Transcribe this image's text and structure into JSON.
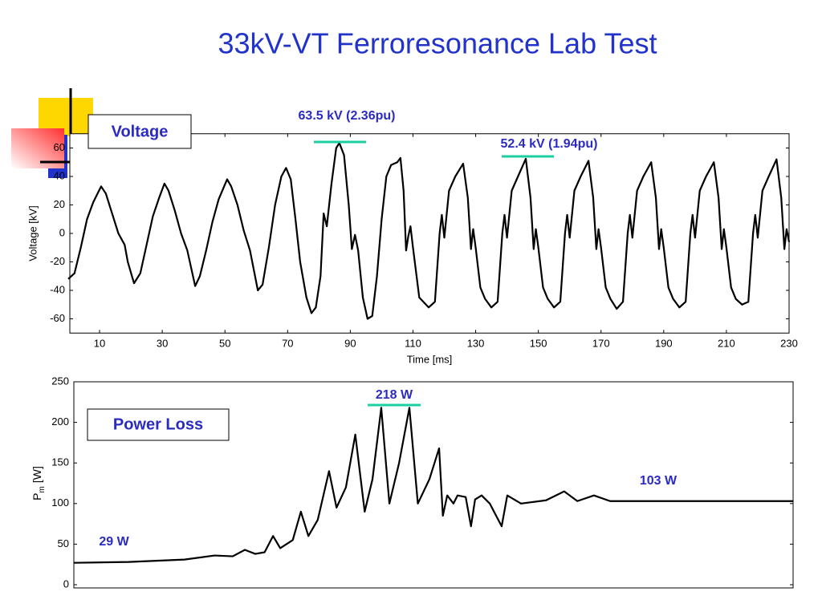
{
  "slide_title": "33kV-VT Ferroresonance Lab Test",
  "chart_data": [
    {
      "type": "line",
      "label": "Voltage",
      "y_label": "Voltage [kV]",
      "x_label": "Time [ms]",
      "annotations": [
        "63.5 kV (2.36pu)",
        "52.4 kV (1.94pu)"
      ],
      "xlim": [
        0,
        230
      ],
      "xticks": [
        10,
        30,
        50,
        70,
        90,
        110,
        130,
        150,
        170,
        190,
        210,
        230
      ],
      "ylim": [
        -70,
        70
      ],
      "yticks": [
        -60,
        -40,
        -20,
        0,
        20,
        40,
        60
      ],
      "series": [
        {
          "color": "#000000",
          "x": [
            0,
            2,
            4,
            6,
            8,
            10.5,
            12,
            14,
            16,
            18,
            19,
            21,
            23,
            25,
            27,
            29,
            30.7,
            32,
            34,
            36,
            38,
            40.5,
            42,
            44,
            46,
            48,
            50.7,
            52,
            54,
            56,
            58,
            60.5,
            62,
            64,
            66,
            68,
            69.5,
            71,
            72.5,
            74,
            76,
            77.6,
            79,
            80.5,
            81.5,
            82.5,
            84,
            85.5,
            86.5,
            88,
            89.5,
            90.5,
            91.5,
            92.5,
            94,
            95.5,
            97,
            98.5,
            100,
            101.5,
            103,
            105,
            106,
            107,
            107.8,
            108.5,
            109.2,
            110,
            112,
            115,
            117,
            118.5,
            119.2,
            120,
            121.5,
            123.5,
            126,
            127.5,
            128.5,
            129.2,
            130,
            131.5,
            133,
            135,
            137,
            138.5,
            139.2,
            140,
            141.5,
            143.5,
            146,
            147.5,
            148.5,
            149.2,
            150,
            151.5,
            153,
            155,
            157,
            158.5,
            159.2,
            160,
            161.5,
            163.5,
            166,
            167.5,
            168.5,
            169.2,
            170,
            171.5,
            173,
            175,
            177,
            178.5,
            179.2,
            180,
            181.5,
            183.5,
            186,
            187.5,
            188.5,
            189.2,
            190,
            191.5,
            193,
            195,
            197,
            198.5,
            199.2,
            200,
            201.5,
            203.5,
            206,
            207.5,
            208.5,
            209.2,
            210,
            211.5,
            213,
            215,
            217,
            218.5,
            219.2,
            220,
            221.5,
            223.5,
            226,
            227.5,
            228.5,
            229.2,
            230
          ],
          "values": [
            -32,
            -28,
            -10,
            10,
            22,
            33,
            28,
            14,
            0,
            -8,
            -20,
            -35,
            -28,
            -8,
            12,
            25,
            35,
            30,
            16,
            0,
            -12,
            -37,
            -30,
            -12,
            8,
            24,
            38,
            33,
            20,
            2,
            -12,
            -40,
            -36,
            -10,
            20,
            40,
            46,
            38,
            10,
            -20,
            -45,
            -56,
            -52,
            -30,
            14,
            5,
            35,
            60,
            63.5,
            55,
            20,
            -11,
            -1,
            -12,
            -45,
            -60,
            -58,
            -30,
            10,
            40,
            48,
            50,
            53,
            30,
            -12,
            -2,
            5,
            -10,
            -45,
            -52,
            -48,
            0,
            13,
            -3,
            30,
            40,
            49,
            25,
            -11,
            3,
            -10,
            -38,
            -46,
            -52,
            -48,
            0,
            13,
            -3,
            30,
            40,
            52.4,
            25,
            -11,
            3,
            -10,
            -38,
            -46,
            -52,
            -48,
            0,
            13,
            -3,
            30,
            40,
            51,
            25,
            -11,
            3,
            -10,
            -38,
            -46,
            -53,
            -48,
            0,
            13,
            -3,
            30,
            40,
            50,
            25,
            -11,
            3,
            -10,
            -38,
            -46,
            -52,
            -48,
            0,
            13,
            -3,
            30,
            40,
            50,
            25,
            -11,
            3,
            -10,
            -38,
            -46,
            -50,
            -48,
            0,
            13,
            -3,
            30,
            40,
            52,
            25,
            -11,
            3,
            -6
          ]
        }
      ]
    },
    {
      "type": "line",
      "label": "Power Loss",
      "y_label": {
        "text": "P",
        "subscript": "m",
        "suffix": "[W]"
      },
      "annotations": [
        "218 W",
        "103 W",
        "29 W"
      ],
      "xlim": [
        0,
        230
      ],
      "ylim": [
        0,
        250
      ],
      "yticks": [
        0,
        50,
        100,
        150,
        200,
        250
      ],
      "series": [
        {
          "color": "#000000",
          "x": [
            0,
            17.5,
            35.4,
            45,
            50.8,
            54.7,
            58,
            61,
            63.7,
            66,
            70,
            72.6,
            75,
            78,
            81.6,
            84,
            87,
            90,
            93,
            95.5,
            98.3,
            100.9,
            104,
            107.3,
            110,
            113.7,
            116.8,
            118,
            119.4,
            121.4,
            122.7,
            125.3,
            127,
            128.3,
            130.4,
            133,
            136.8,
            138.6,
            143,
            151,
            156.8,
            161,
            166.3,
            171.5,
            181.7,
            207,
            230
          ],
          "values": [
            27,
            28,
            31,
            36,
            35,
            43,
            38,
            40,
            60,
            45,
            55,
            90,
            60,
            80,
            140,
            95,
            120,
            185,
            90,
            130,
            218,
            100,
            150,
            218,
            100,
            130,
            168,
            85,
            110,
            100,
            110,
            108,
            72,
            105,
            110,
            100,
            72,
            110,
            100,
            104,
            115,
            103,
            110,
            103,
            103,
            103,
            103
          ]
        }
      ]
    }
  ]
}
